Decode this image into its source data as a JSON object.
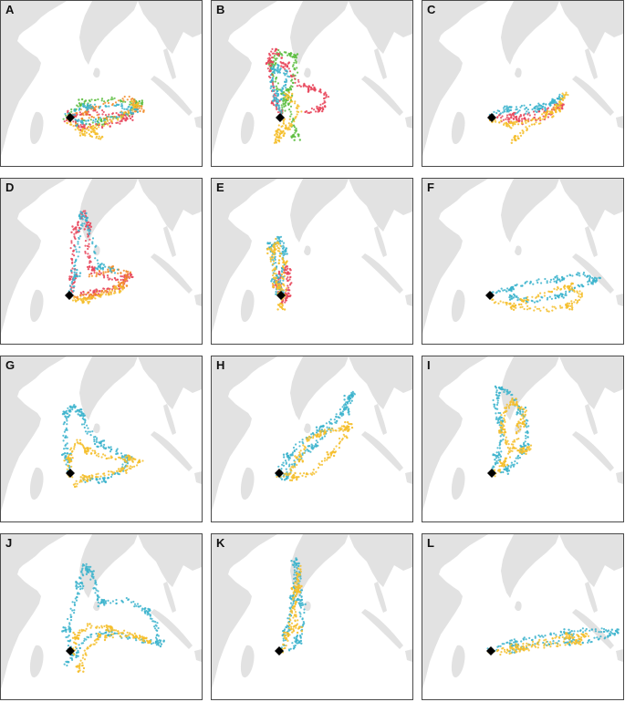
{
  "figure": {
    "colors": {
      "land": "#e2e2e2",
      "sea": "#ffffff",
      "border": "#4a4a4a",
      "track_green": "#5bbd3e",
      "track_orange": "#f28c28",
      "track_red": "#e8455a",
      "track_blue": "#3bb3cc",
      "track_yellow": "#f5be2a",
      "release_marker": "#000000"
    },
    "marker_icon": "black-diamond-release-marker",
    "panels": [
      {
        "label": "A",
        "palette": [
          "track_green",
          "track_orange",
          "track_red",
          "track_blue",
          "track_yellow"
        ]
      },
      {
        "label": "B",
        "palette": [
          "track_green",
          "track_red",
          "track_blue",
          "track_yellow"
        ]
      },
      {
        "label": "C",
        "palette": [
          "track_red",
          "track_blue",
          "track_yellow"
        ]
      },
      {
        "label": "D",
        "palette": [
          "track_red",
          "track_orange",
          "track_blue",
          "track_yellow"
        ]
      },
      {
        "label": "E",
        "palette": [
          "track_red",
          "track_blue",
          "track_yellow"
        ]
      },
      {
        "label": "F",
        "palette": [
          "track_blue",
          "track_yellow"
        ]
      },
      {
        "label": "G",
        "palette": [
          "track_blue",
          "track_yellow"
        ]
      },
      {
        "label": "H",
        "palette": [
          "track_blue",
          "track_yellow"
        ]
      },
      {
        "label": "I",
        "palette": [
          "track_blue",
          "track_yellow"
        ]
      },
      {
        "label": "J",
        "palette": [
          "track_blue",
          "track_yellow"
        ]
      },
      {
        "label": "K",
        "palette": [
          "track_blue",
          "track_yellow"
        ]
      },
      {
        "label": "L",
        "palette": [
          "track_blue",
          "track_yellow"
        ]
      }
    ]
  }
}
